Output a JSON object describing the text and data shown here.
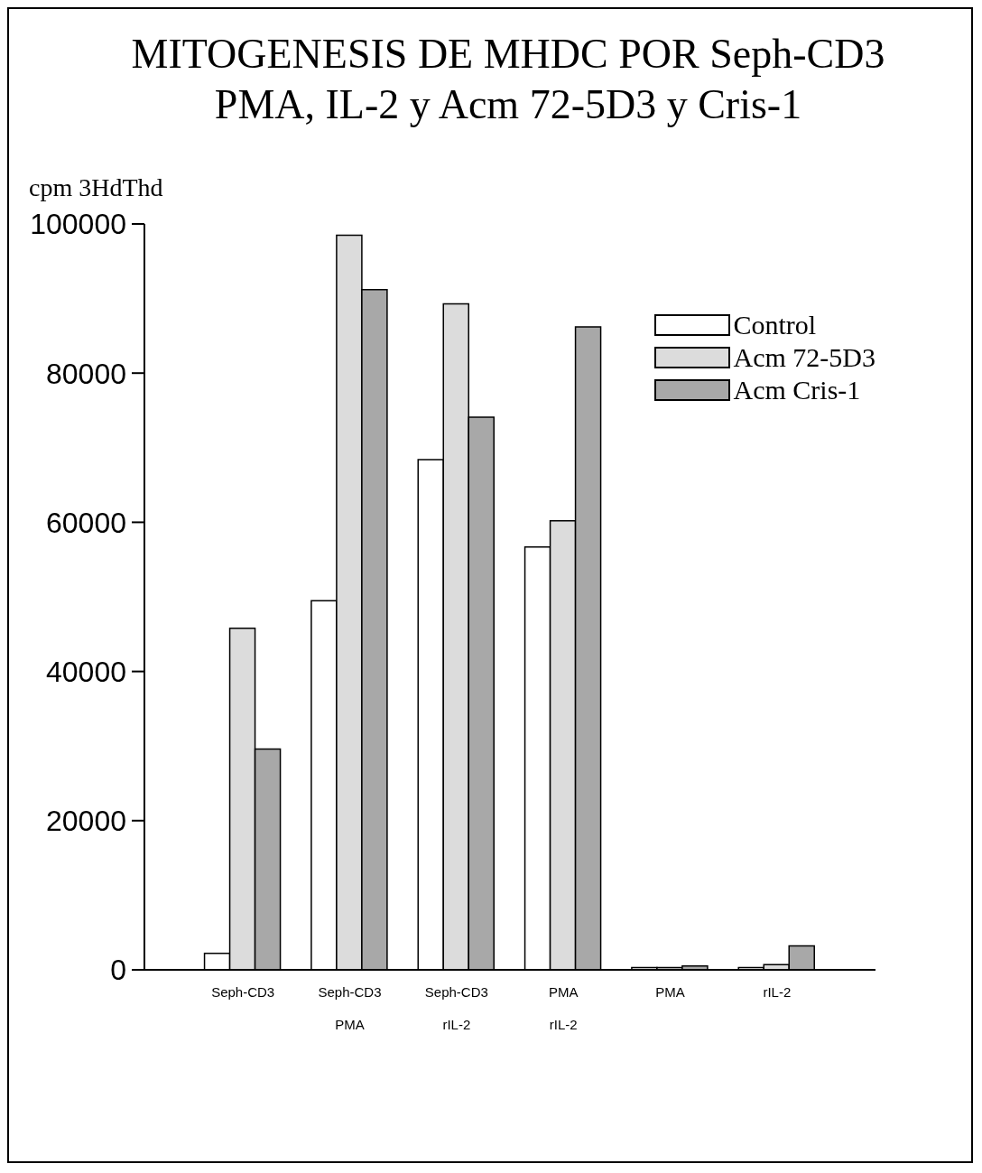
{
  "chart_data": {
    "type": "bar",
    "title": "MITOGENESIS DE MHDC POR Seph-CD3\nPMA, IL-2 y Acm 72-5D3 y Cris-1",
    "ylabel": "cpm 3HdThd",
    "categories": [
      "Seph-CD3",
      "Seph-CD3 PMA",
      "Seph-CD3 rIL-2",
      "PMA rIL-2",
      "PMA",
      "rIL-2"
    ],
    "series": [
      {
        "name": "Control",
        "color": "#ffffff",
        "values": [
          2200,
          49500,
          68400,
          56700,
          300,
          300
        ]
      },
      {
        "name": "Acm 72-5D3",
        "color": "#dcdcdc",
        "values": [
          45800,
          98500,
          89300,
          60200,
          300,
          700
        ]
      },
      {
        "name": "Acm Cris-1",
        "color": "#a8a8a8",
        "values": [
          29600,
          91200,
          74100,
          86200,
          500,
          3200
        ]
      }
    ],
    "ylim": [
      0,
      100000
    ],
    "yticks": [
      0,
      20000,
      40000,
      60000,
      80000,
      100000
    ],
    "grid": false,
    "legend": "top right"
  }
}
